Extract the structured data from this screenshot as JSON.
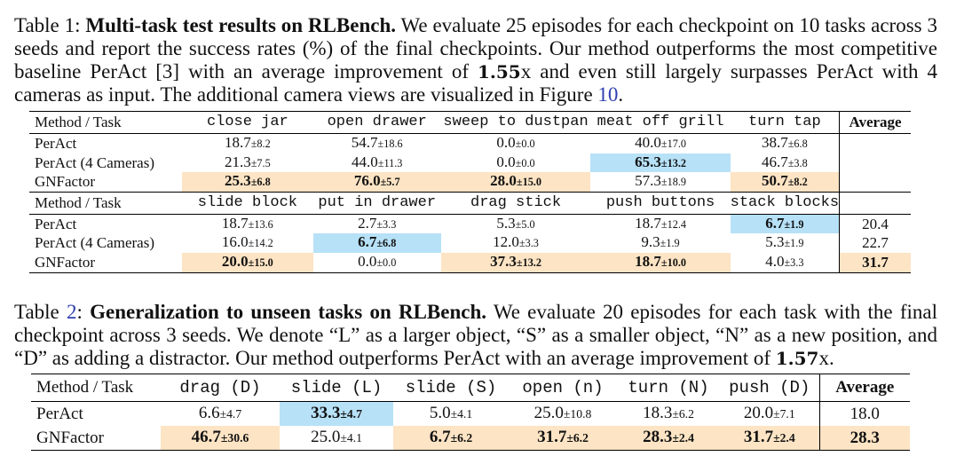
{
  "table1": {
    "caption": {
      "label": "Table 1:",
      "title": "Multi-task test results on RLBench.",
      "text_a": "We evaluate 25 episodes for each checkpoint on 10 tasks across 3 seeds and report the success rates (%) of the final checkpoints. Our method outperforms the most competitive baseline PerAct [3] with an average improvement of",
      "improvement": "1.55",
      "text_b": "x and even still largely surpasses PerAct with 4 cameras as input. The additional camera views are visualized in Figure",
      "figure_ref": "10",
      "text_c": "."
    },
    "header1": {
      "method": "Method / Task",
      "tasks": [
        "close jar",
        "open drawer",
        "sweep to dustpan",
        "meat off grill",
        "turn tap"
      ],
      "average": "Average"
    },
    "block1": [
      {
        "method": "PerAct",
        "cells": [
          [
            "18.7",
            "±8.2"
          ],
          [
            "54.7",
            "±18.6"
          ],
          [
            "0.0",
            "±0.0"
          ],
          [
            "40.0",
            "±17.0"
          ],
          [
            "38.7",
            "±6.8"
          ]
        ]
      },
      {
        "method": "PerAct (4 Cameras)",
        "cells": [
          [
            "21.3",
            "±7.5"
          ],
          [
            "44.0",
            "±11.3"
          ],
          [
            "0.0",
            "±0.0"
          ],
          [
            "65.3",
            "±13.2"
          ],
          [
            "46.7",
            "±3.8"
          ]
        ]
      },
      {
        "method": "GNFactor",
        "cells": [
          [
            "25.3",
            "±6.8"
          ],
          [
            "76.0",
            "±5.7"
          ],
          [
            "28.0",
            "±15.0"
          ],
          [
            "57.3",
            "±18.9"
          ],
          [
            "50.7",
            "±8.2"
          ]
        ]
      }
    ],
    "header2": {
      "method": "Method / Task",
      "tasks": [
        "slide block",
        "put in drawer",
        "drag stick",
        "push buttons",
        "stack blocks"
      ]
    },
    "block2": [
      {
        "method": "PerAct",
        "cells": [
          [
            "18.7",
            "±13.6"
          ],
          [
            "2.7",
            "±3.3"
          ],
          [
            "5.3",
            "±5.0"
          ],
          [
            "18.7",
            "±12.4"
          ],
          [
            "6.7",
            "±1.9"
          ]
        ],
        "average": "20.4"
      },
      {
        "method": "PerAct (4 Cameras)",
        "cells": [
          [
            "16.0",
            "±14.2"
          ],
          [
            "6.7",
            "±6.8"
          ],
          [
            "12.0",
            "±3.3"
          ],
          [
            "9.3",
            "±1.9"
          ],
          [
            "5.3",
            "±1.9"
          ]
        ],
        "average": "22.7"
      },
      {
        "method": "GNFactor",
        "cells": [
          [
            "20.0",
            "±15.0"
          ],
          [
            "0.0",
            "±0.0"
          ],
          [
            "37.3",
            "±13.2"
          ],
          [
            "18.7",
            "±10.0"
          ],
          [
            "4.0",
            "±3.3"
          ]
        ],
        "average": "31.7"
      }
    ]
  },
  "table2": {
    "caption": {
      "label_prefix": "Table ",
      "label_ref": "2",
      "label_suffix": ":",
      "title": "Generalization to unseen tasks on RLBench.",
      "text_a": "We evaluate 20 episodes for each task with the final checkpoint across 3 seeds. We denote “L” as a larger object, “S” as a smaller object, “N” as a new position, and “D” as adding a distractor. Our method outperforms PerAct with an average improvement of",
      "improvement": "1.57",
      "text_b": "x."
    },
    "header": {
      "method": "Method / Task",
      "tasks": [
        "drag (D)",
        "slide (L)",
        "slide (S)",
        "open (n)",
        "turn (N)",
        "push (D)"
      ],
      "average": "Average"
    },
    "rows": [
      {
        "method": "PerAct",
        "cells": [
          [
            "6.6",
            "±4.7"
          ],
          [
            "33.3",
            "±4.7"
          ],
          [
            "5.0",
            "±4.1"
          ],
          [
            "25.0",
            "±10.8"
          ],
          [
            "18.3",
            "±6.2"
          ],
          [
            "20.0",
            "±7.1"
          ]
        ],
        "average": "18.0"
      },
      {
        "method": "GNFactor",
        "cells": [
          [
            "46.7",
            "±30.6"
          ],
          [
            "25.0",
            "±4.1"
          ],
          [
            "6.7",
            "±6.2"
          ],
          [
            "31.7",
            "±6.2"
          ],
          [
            "28.3",
            "±2.4"
          ],
          [
            "31.7",
            "±2.4"
          ]
        ],
        "average": "28.3"
      }
    ]
  },
  "colors": {
    "highlight_best": "#fde4c4",
    "highlight_second": "#b7e1f7",
    "reference_link": "#2f3fb0"
  }
}
